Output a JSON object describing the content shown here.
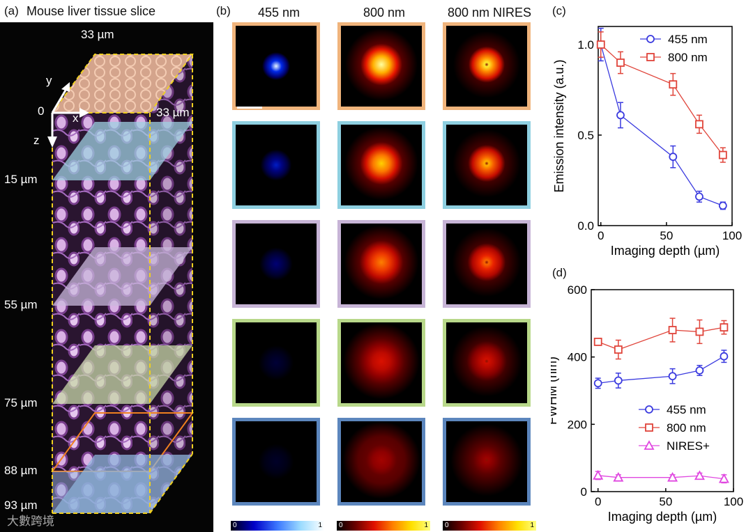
{
  "panel_a": {
    "label": "(a)",
    "title": "Mouse liver tissue slice",
    "dim_top": "33 µm",
    "dim_side": "33 µm",
    "axis_y": "y",
    "axis_x": "x",
    "axis_z": "z",
    "origin": "0",
    "depth_labels": [
      "15 µm",
      "55 µm",
      "75 µm",
      "88 µm",
      "93 µm"
    ],
    "slice_colors": [
      "#f3c6a8",
      "#9fd0e2",
      "#c9b8dc",
      "#c8d8a8",
      "#8fb4dc"
    ]
  },
  "panel_b": {
    "label": "(b)",
    "columns": [
      "455 nm",
      "800 nm",
      "800 nm NIRES"
    ],
    "row_border_colors": [
      "#f0b47c",
      "#8ecfe0",
      "#c7b4d6",
      "#b8d88a",
      "#5c86bd"
    ],
    "intensity_455": [
      1.0,
      0.61,
      0.38,
      0.16,
      0.11
    ],
    "intensity_800": [
      1.0,
      0.9,
      0.78,
      0.56,
      0.39
    ],
    "colorbar_min": "0",
    "colorbar_max": "1"
  },
  "chart_data": [
    {
      "panel": "(c)",
      "type": "line",
      "xlabel": "Imaging depth (µm)",
      "ylabel": "Emission intensity (a.u.)",
      "xlim": [
        -2,
        100
      ],
      "ylim": [
        0.0,
        1.1
      ],
      "xticks": [
        "0",
        "50",
        "100"
      ],
      "yticks": [
        "0.0",
        "0.5",
        "1.0"
      ],
      "legend": "top-right",
      "series": [
        {
          "name": "455 nm",
          "marker": "circle",
          "color": "#3a3adf",
          "x": [
            0,
            15,
            55,
            75,
            93
          ],
          "y": [
            1.0,
            0.61,
            0.38,
            0.16,
            0.11
          ],
          "err": [
            0.09,
            0.07,
            0.06,
            0.03,
            0.02
          ]
        },
        {
          "name": "800 nm",
          "marker": "square",
          "color": "#e0443a",
          "x": [
            0,
            15,
            55,
            75,
            93
          ],
          "y": [
            1.0,
            0.9,
            0.78,
            0.56,
            0.39
          ],
          "err": [
            0.07,
            0.06,
            0.06,
            0.05,
            0.04
          ]
        }
      ]
    },
    {
      "panel": "(d)",
      "type": "line",
      "xlabel": "Imaging depth (µm)",
      "ylabel": "FWHM (nm)",
      "xlim": [
        -5,
        100
      ],
      "ylim": [
        0,
        600
      ],
      "xticks": [
        "0",
        "50",
        "100"
      ],
      "yticks": [
        "0",
        "200",
        "400",
        "600"
      ],
      "legend": "bottom-right",
      "series": [
        {
          "name": "455 nm",
          "marker": "circle",
          "color": "#3a3adf",
          "x": [
            0,
            15,
            55,
            75,
            93
          ],
          "y": [
            322,
            330,
            343,
            360,
            402
          ],
          "err": [
            15,
            22,
            22,
            15,
            18
          ]
        },
        {
          "name": "800 nm",
          "marker": "square",
          "color": "#e0443a",
          "x": [
            0,
            15,
            55,
            75,
            93
          ],
          "y": [
            445,
            422,
            480,
            475,
            488
          ],
          "err": [
            10,
            28,
            35,
            35,
            20
          ]
        },
        {
          "name": "NIRES+",
          "marker": "triangle",
          "color": "#e048e0",
          "x": [
            0,
            15,
            55,
            75,
            93
          ],
          "y": [
            48,
            42,
            42,
            47,
            38
          ],
          "err": [
            12,
            8,
            8,
            8,
            12
          ]
        }
      ]
    }
  ],
  "watermark": "大數跨境"
}
